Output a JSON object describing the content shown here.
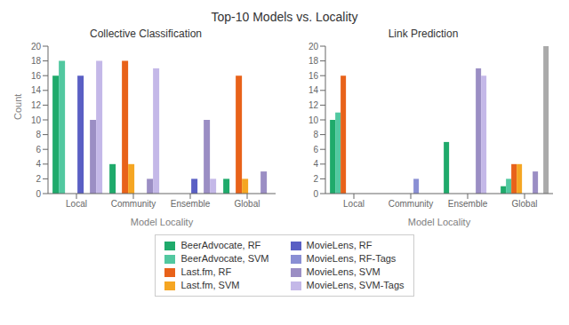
{
  "title": "Top-10 Models vs. Locality",
  "legend": "bottom",
  "chart_data": [
    {
      "type": "bar",
      "title": "Collective Classification",
      "xlabel": "Model Locality",
      "ylabel": "Count",
      "categories": [
        "Local",
        "Community",
        "Ensemble",
        "Global"
      ],
      "ylim": [
        0,
        20
      ],
      "yticks": [
        0,
        2,
        4,
        6,
        8,
        10,
        12,
        14,
        16,
        18,
        20
      ],
      "grid": false,
      "series": [
        {
          "name": "BeerAdvocate, RF",
          "color": "#1faa6b",
          "values": [
            16,
            4,
            0,
            2
          ]
        },
        {
          "name": "BeerAdvocate, SVM",
          "color": "#52c8a0",
          "values": [
            18,
            0,
            0,
            0
          ]
        },
        {
          "name": "Last.fm, RF",
          "color": "#e8621a",
          "values": [
            0,
            18,
            0,
            16
          ]
        },
        {
          "name": "Last.fm, SVM",
          "color": "#f5a623",
          "values": [
            0,
            4,
            0,
            2
          ]
        },
        {
          "name": "MovieLens, RF",
          "color": "#5a5fc4",
          "values": [
            16,
            0,
            2,
            0
          ]
        },
        {
          "name": "MovieLens, RF-Tags",
          "color": "#8a8fd4",
          "values": [
            0,
            0,
            0,
            0
          ]
        },
        {
          "name": "MovieLens, SVM",
          "color": "#9b8ec4",
          "values": [
            10,
            2,
            10,
            3
          ]
        },
        {
          "name": "MovieLens, SVM-Tags",
          "color": "#c4b8e8",
          "values": [
            18,
            17,
            2,
            0
          ]
        }
      ]
    },
    {
      "type": "bar",
      "title": "Link Prediction",
      "xlabel": "Model Locality",
      "categories": [
        "Local",
        "Community",
        "Ensemble",
        "Global"
      ],
      "ylim": [
        0,
        20
      ],
      "yticks": [
        0,
        2,
        4,
        6,
        8,
        10,
        12,
        14,
        16,
        18,
        20
      ],
      "grid": false,
      "series": [
        {
          "name": "BeerAdvocate, RF",
          "color": "#1faa6b",
          "values": [
            10,
            0,
            7,
            1
          ]
        },
        {
          "name": "BeerAdvocate, SVM",
          "color": "#52c8a0",
          "values": [
            11,
            0,
            0,
            2
          ]
        },
        {
          "name": "Last.fm, RF",
          "color": "#e8621a",
          "values": [
            16,
            0,
            0,
            4
          ]
        },
        {
          "name": "Last.fm, SVM",
          "color": "#f5a623",
          "values": [
            0,
            0,
            0,
            4
          ]
        },
        {
          "name": "MovieLens, RF",
          "color": "#5a5fc4",
          "values": [
            0,
            0,
            0,
            0
          ]
        },
        {
          "name": "MovieLens, RF-Tags",
          "color": "#8a8fd4",
          "values": [
            0,
            2,
            0,
            0
          ]
        },
        {
          "name": "MovieLens, SVM",
          "color": "#9b8ec4",
          "values": [
            0,
            0,
            17,
            3
          ]
        },
        {
          "name": "MovieLens, SVM-Tags",
          "color": "#c4b8e8",
          "values": [
            0,
            0,
            16,
            0
          ]
        },
        {
          "color": "#aaaaaa",
          "values": [
            null,
            null,
            null,
            20
          ]
        }
      ]
    }
  ]
}
